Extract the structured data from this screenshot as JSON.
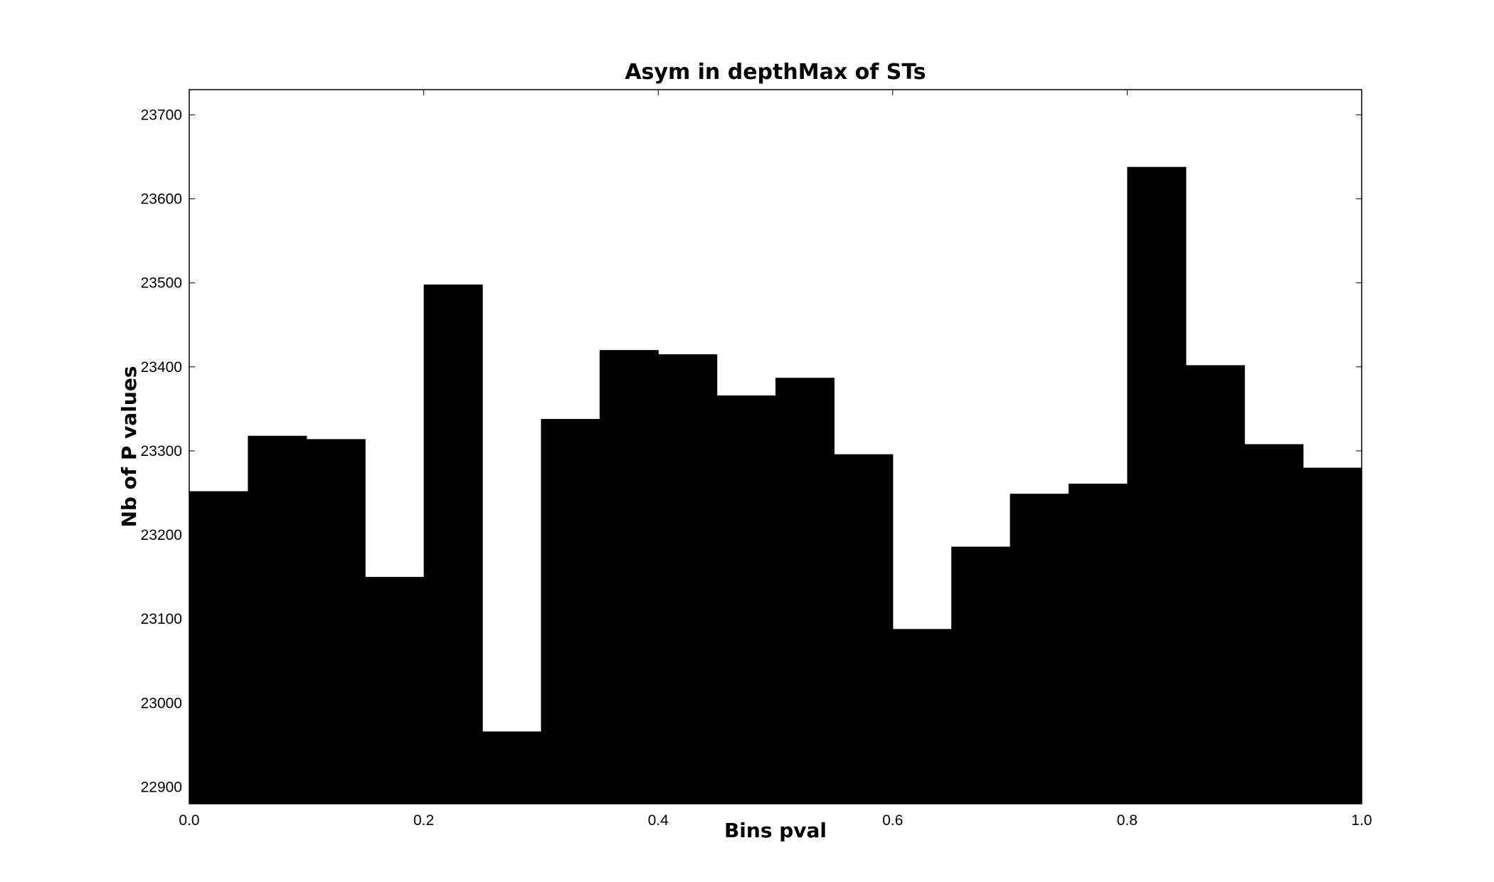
{
  "chart_data": {
    "type": "bar",
    "title": "Asym in depthMax of STs",
    "xlabel": "Bins pval",
    "ylabel": "Nb of P values",
    "xlim": [
      0.0,
      1.0
    ],
    "ylim": [
      22880,
      23730
    ],
    "bins": [
      {
        "x0": 0.0,
        "x1": 0.05,
        "value": 23252
      },
      {
        "x0": 0.05,
        "x1": 0.1,
        "value": 23318
      },
      {
        "x0": 0.1,
        "x1": 0.15,
        "value": 23314
      },
      {
        "x0": 0.15,
        "x1": 0.2,
        "value": 23150
      },
      {
        "x0": 0.2,
        "x1": 0.25,
        "value": 23498
      },
      {
        "x0": 0.25,
        "x1": 0.3,
        "value": 22966
      },
      {
        "x0": 0.3,
        "x1": 0.35,
        "value": 23338
      },
      {
        "x0": 0.35,
        "x1": 0.4,
        "value": 23420
      },
      {
        "x0": 0.4,
        "x1": 0.45,
        "value": 23415
      },
      {
        "x0": 0.45,
        "x1": 0.5,
        "value": 23366
      },
      {
        "x0": 0.5,
        "x1": 0.55,
        "value": 23387
      },
      {
        "x0": 0.55,
        "x1": 0.6,
        "value": 23296
      },
      {
        "x0": 0.6,
        "x1": 0.65,
        "value": 23088
      },
      {
        "x0": 0.65,
        "x1": 0.7,
        "value": 23186
      },
      {
        "x0": 0.7,
        "x1": 0.75,
        "value": 23249
      },
      {
        "x0": 0.75,
        "x1": 0.8,
        "value": 23261
      },
      {
        "x0": 0.8,
        "x1": 0.85,
        "value": 23638
      },
      {
        "x0": 0.85,
        "x1": 0.9,
        "value": 23402
      },
      {
        "x0": 0.9,
        "x1": 0.95,
        "value": 23308
      },
      {
        "x0": 0.95,
        "x1": 1.0,
        "value": 23280
      }
    ],
    "x_ticks": [
      {
        "value": 0.0,
        "label": "0.0"
      },
      {
        "value": 0.2,
        "label": "0.2"
      },
      {
        "value": 0.4,
        "label": "0.4"
      },
      {
        "value": 0.6,
        "label": "0.6"
      },
      {
        "value": 0.8,
        "label": "0.8"
      },
      {
        "value": 1.0,
        "label": "1.0"
      }
    ],
    "y_ticks": [
      {
        "value": 22900,
        "label": "22900"
      },
      {
        "value": 23000,
        "label": "23000"
      },
      {
        "value": 23100,
        "label": "23100"
      },
      {
        "value": 23200,
        "label": "23200"
      },
      {
        "value": 23300,
        "label": "23300"
      },
      {
        "value": 23400,
        "label": "23400"
      },
      {
        "value": 23500,
        "label": "23500"
      },
      {
        "value": 23600,
        "label": "23600"
      },
      {
        "value": 23700,
        "label": "23700"
      }
    ],
    "grid": false,
    "bar_color": "#000000"
  }
}
